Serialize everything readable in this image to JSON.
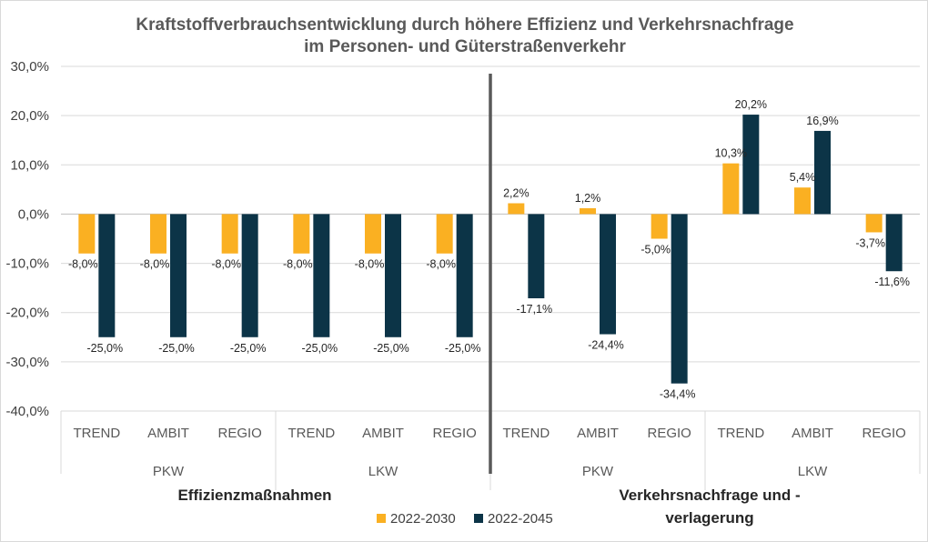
{
  "chart_data": {
    "type": "bar",
    "title_lines": [
      "Kraftstoffverbrauchsentwicklung durch höhere Effizienz und Verkehrsnachfrage",
      "im Personen- und Güterstraßenverkehr"
    ],
    "categories": [
      "TREND",
      "AMBIT",
      "REGIO",
      "TREND",
      "AMBIT",
      "REGIO",
      "TREND",
      "AMBIT",
      "REGIO",
      "TREND",
      "AMBIT",
      "REGIO"
    ],
    "groups": [
      {
        "label": "PKW",
        "start": 0,
        "count": 3
      },
      {
        "label": "LKW",
        "start": 3,
        "count": 3
      },
      {
        "label": "PKW",
        "start": 6,
        "count": 3
      },
      {
        "label": "LKW",
        "start": 9,
        "count": 3
      }
    ],
    "sections": [
      {
        "label_lines": [
          "Effizienzmaßnahmen"
        ],
        "start": 0,
        "count": 6
      },
      {
        "label_lines": [
          "Verkehrsnachfrage und -",
          "verlagerung"
        ],
        "start": 6,
        "count": 6
      }
    ],
    "series": [
      {
        "name": "2022-2030",
        "color": "#FAB022",
        "values": [
          -8.0,
          -8.0,
          -8.0,
          -8.0,
          -8.0,
          -8.0,
          2.2,
          1.2,
          -5.0,
          10.3,
          5.4,
          -3.7
        ],
        "labels": [
          "-8,0%",
          "-8,0%",
          "-8,0%",
          "-8,0%",
          "-8,0%",
          "-8,0%",
          "2,2%",
          "1,2%",
          "-5,0%",
          "10,3%",
          "5,4%",
          "-3,7%"
        ]
      },
      {
        "name": "2022-2045",
        "color": "#0C3447",
        "values": [
          -25.0,
          -25.0,
          -25.0,
          -25.0,
          -25.0,
          -25.0,
          -17.1,
          -24.4,
          -34.4,
          20.2,
          16.9,
          -11.6
        ],
        "labels": [
          "-25,0%",
          "-25,0%",
          "-25,0%",
          "-25,0%",
          "-25,0%",
          "-25,0%",
          "-17,1%",
          "-24,4%",
          "-34,4%",
          "20,2%",
          "16,9%",
          "-11,6%"
        ]
      }
    ],
    "ylim": [
      -40,
      30
    ],
    "yticks": [
      30,
      20,
      10,
      0,
      -10,
      -20,
      -30,
      -40
    ],
    "ytick_labels": [
      "30,0%",
      "20,0%",
      "10,0%",
      "0,0%",
      "-10,0%",
      "-20,0%",
      "-30,0%",
      "-40,0%"
    ],
    "grid": true,
    "legend_position": "bottom",
    "divider_after_category": 6
  }
}
